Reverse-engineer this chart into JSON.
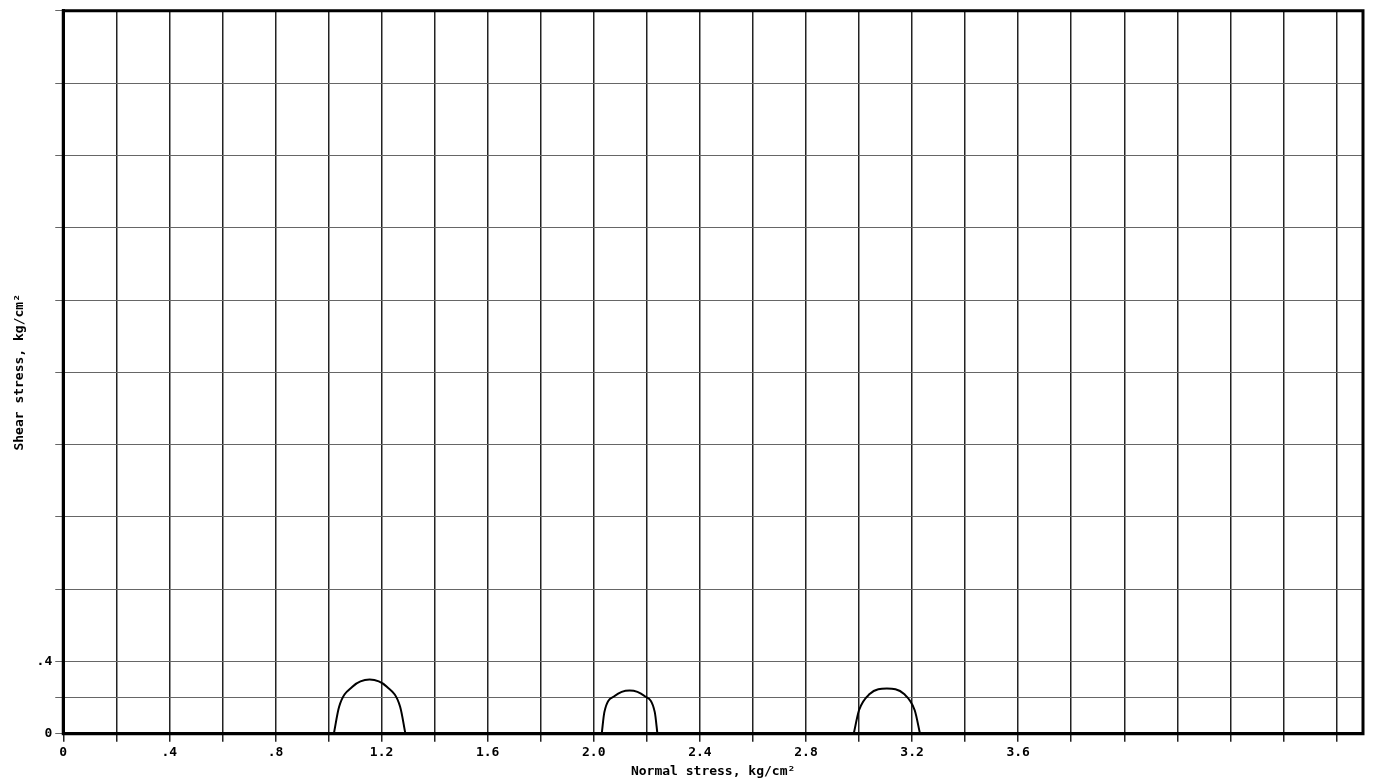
{
  "chart_data": {
    "type": "line",
    "xlabel": "Normal stress, kg/cm²",
    "ylabel": "Shear stress, kg/cm²",
    "series": [
      {
        "color": "#000000",
        "x": [
          1.02,
          1.04,
          1.09,
          1.155,
          1.22,
          1.27,
          1.29
        ],
        "values": [
          0,
          0.15,
          0.26,
          0.3,
          0.26,
          0.15,
          0
        ]
      },
      {
        "color": "#000000",
        "x": [
          2.03,
          2.04,
          2.08,
          2.135,
          2.19,
          2.23,
          2.24
        ],
        "values": [
          0,
          0.12,
          0.21,
          0.24,
          0.21,
          0.12,
          0
        ]
      },
      {
        "color": "#000000",
        "x": [
          2.98,
          3.0,
          3.04,
          3.105,
          3.17,
          3.21,
          3.23
        ],
        "values": [
          0,
          0.13,
          0.22,
          0.25,
          0.22,
          0.13,
          0
        ]
      }
    ],
    "xlim": [
      0,
      4.9
    ],
    "ylim": [
      0,
      4.0
    ],
    "xticks": [
      0,
      {
        "value": 0.2,
        "label": null
      },
      {
        "value": 0.4,
        "label": ".4"
      },
      {
        "value": 0.6,
        "label": null
      },
      {
        "value": 0.8,
        "label": ".8"
      },
      {
        "value": 1.0,
        "label": null
      },
      {
        "value": 1.2,
        "label": "1.2"
      },
      {
        "value": 1.4,
        "label": null
      },
      {
        "value": 1.6,
        "label": "1.6"
      },
      {
        "value": 1.8,
        "label": null
      },
      {
        "value": 2.0,
        "label": "2.0"
      },
      {
        "value": 2.2,
        "label": null
      },
      {
        "value": 2.4,
        "label": "2.4"
      },
      {
        "value": 2.6,
        "label": null
      },
      {
        "value": 2.8,
        "label": "2.8"
      },
      {
        "value": 3.0,
        "label": null
      },
      {
        "value": 3.2,
        "label": "3.2"
      },
      {
        "value": 3.4,
        "label": null
      },
      {
        "value": 3.6,
        "label": "3.6"
      },
      {
        "value": 3.8,
        "label": null
      },
      {
        "value": 4.0,
        "label": null
      },
      {
        "value": 4.2,
        "label": null
      },
      {
        "value": 4.4,
        "label": null
      },
      {
        "value": 4.6,
        "label": null
      },
      {
        "value": 4.8,
        "label": null
      }
    ],
    "yticks": [
      0,
      {
        "value": 0.2,
        "label": null
      },
      {
        "value": 0.4,
        "label": ".4"
      },
      {
        "value": 0.8,
        "label": null
      },
      {
        "value": 1.2,
        "label": null
      },
      {
        "value": 1.6,
        "label": null
      },
      {
        "value": 2.0,
        "label": null
      },
      {
        "value": 2.4,
        "label": null
      },
      {
        "value": 2.8,
        "label": null
      },
      {
        "value": 3.2,
        "label": null
      },
      {
        "value": 3.6,
        "label": null
      },
      {
        "value": 4.0,
        "label": null
      }
    ],
    "grid": true,
    "legend": false,
    "marker": "none",
    "line_style": "solid"
  }
}
